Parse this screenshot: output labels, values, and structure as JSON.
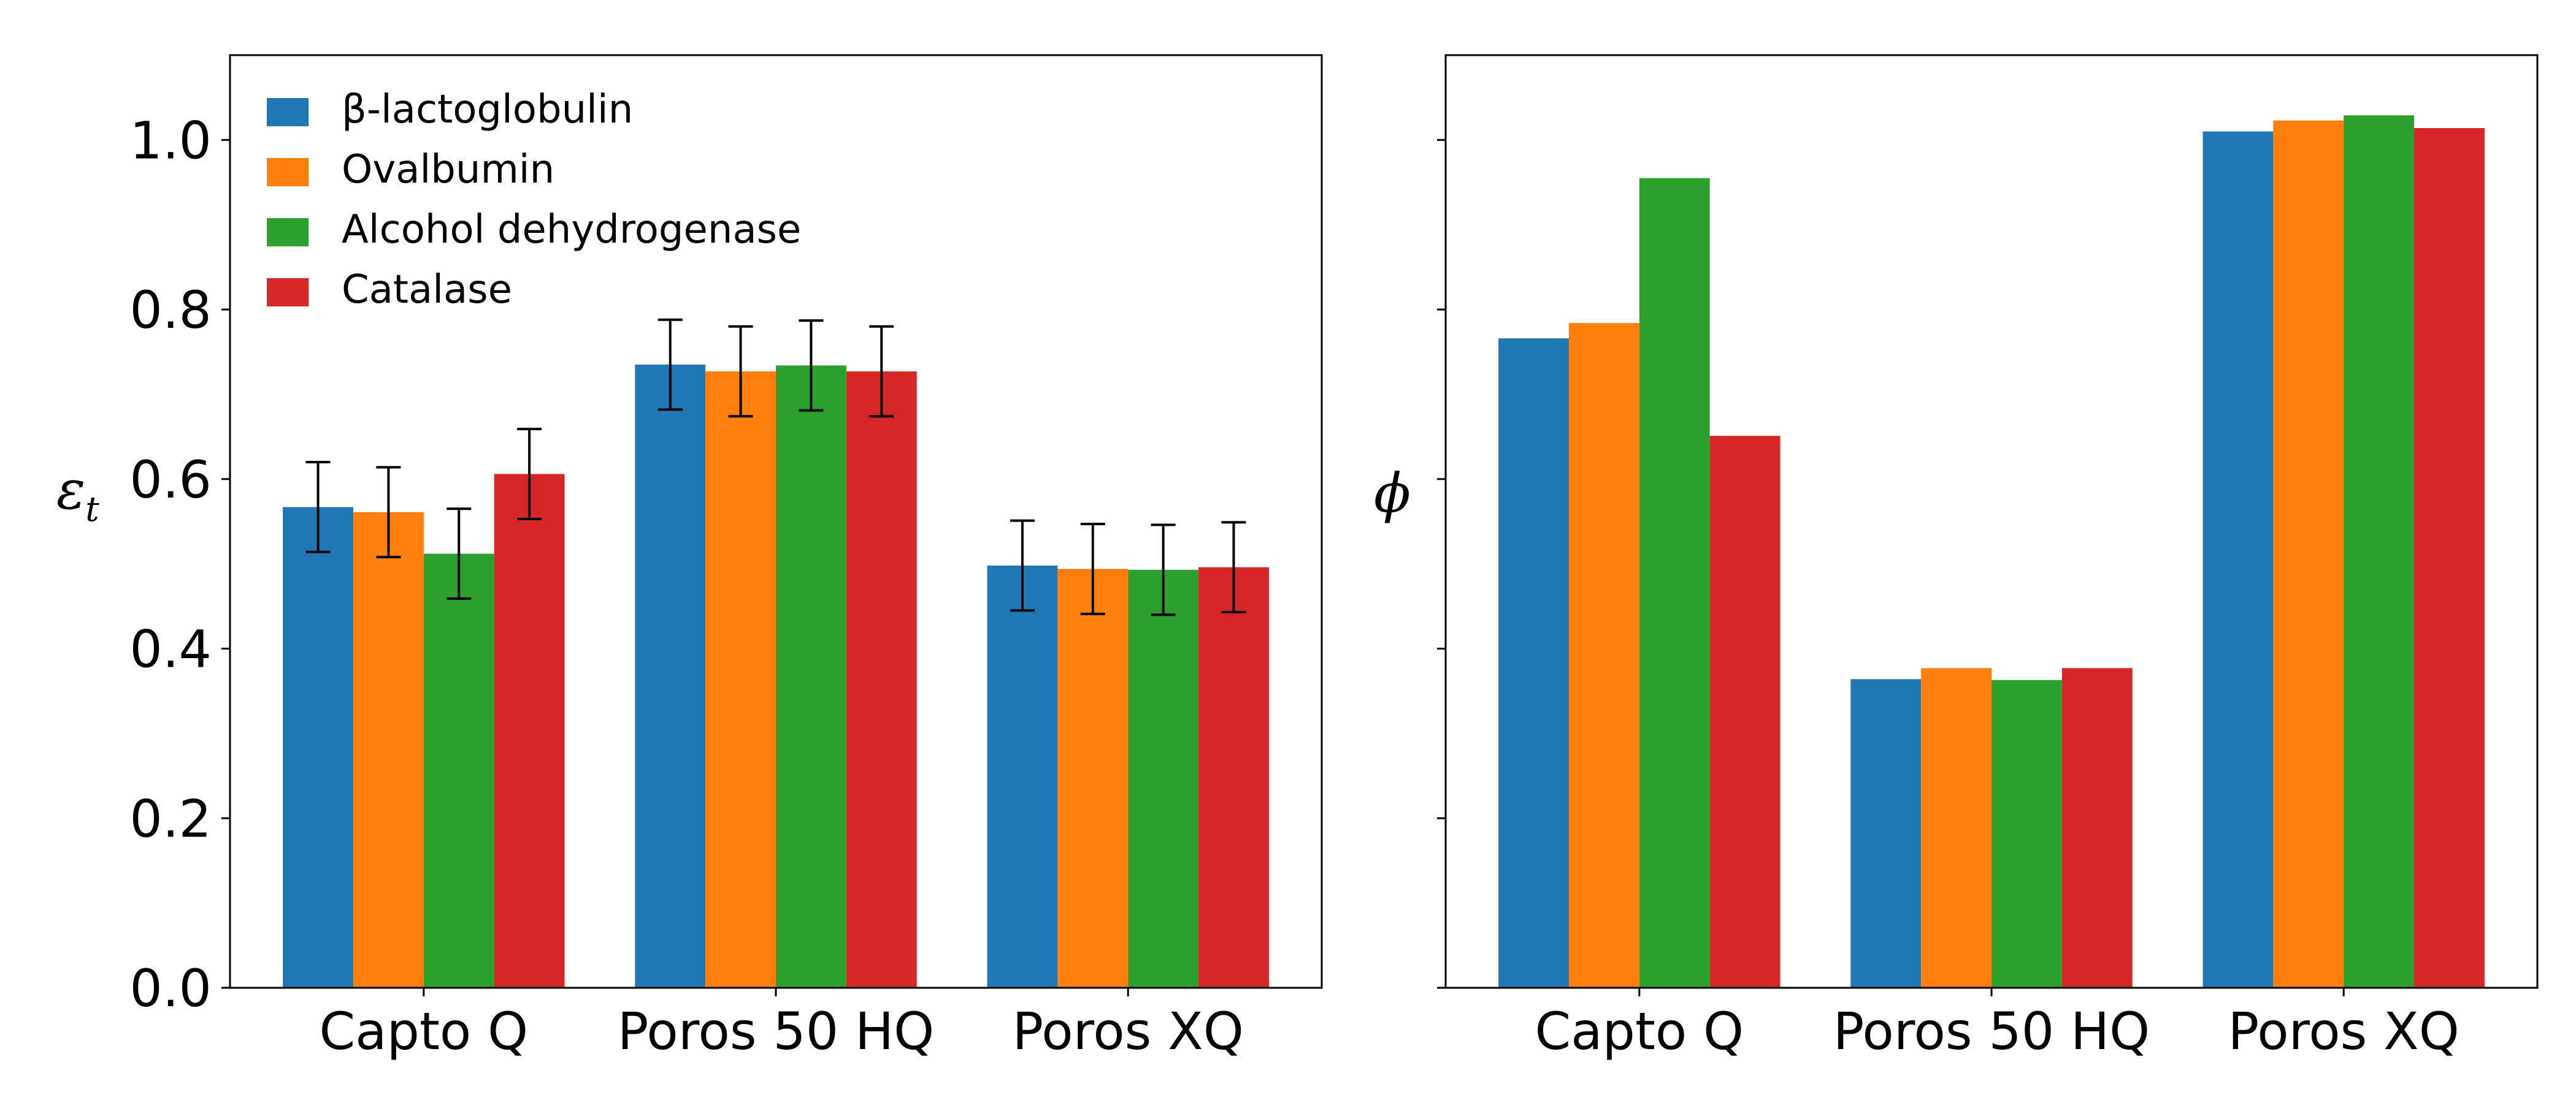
{
  "chart_data": [
    {
      "type": "bar",
      "categories": [
        "Capto Q",
        "Poros 50 HQ",
        "Poros XQ"
      ],
      "ylabel": "ε",
      "ylabel_subscript": "t",
      "ylim": [
        0,
        1.1
      ],
      "yticks": [
        0.0,
        0.2,
        0.4,
        0.6,
        0.8,
        1.0
      ],
      "ytick_labels": [
        "0.0",
        "0.2",
        "0.4",
        "0.6",
        "0.8",
        "1.0"
      ],
      "grid": false,
      "legend": "top-left",
      "series": [
        {
          "name": "β-lactoglobulin",
          "color": "#1f77b4",
          "values": [
            0.567,
            0.735,
            0.498
          ],
          "errors": [
            0.053,
            0.053,
            0.053
          ]
        },
        {
          "name": "Ovalbumin",
          "color": "#ff7f0e",
          "values": [
            0.561,
            0.727,
            0.494
          ],
          "errors": [
            0.053,
            0.053,
            0.053
          ]
        },
        {
          "name": "Alcohol dehydrogenase",
          "color": "#2ca02c",
          "values": [
            0.512,
            0.734,
            0.493
          ],
          "errors": [
            0.053,
            0.053,
            0.053
          ]
        },
        {
          "name": "Catalase",
          "color": "#d62728",
          "values": [
            0.606,
            0.727,
            0.496
          ],
          "errors": [
            0.053,
            0.053,
            0.053
          ]
        }
      ]
    },
    {
      "type": "bar",
      "categories": [
        "Capto Q",
        "Poros 50 HQ",
        "Poros XQ"
      ],
      "ylabel": "ϕ",
      "ylim": [
        0,
        1.1
      ],
      "yticks": [
        0.0,
        0.2,
        0.4,
        0.6,
        0.8,
        1.0
      ],
      "grid": false,
      "series": [
        {
          "color": "#1f77b4",
          "values": [
            0.766,
            0.364,
            1.01
          ]
        },
        {
          "color": "#ff7f0e",
          "values": [
            0.784,
            0.377,
            1.023
          ]
        },
        {
          "color": "#2ca02c",
          "values": [
            0.955,
            0.363,
            1.029
          ]
        },
        {
          "color": "#d62728",
          "values": [
            0.651,
            0.377,
            1.014
          ]
        }
      ]
    }
  ]
}
